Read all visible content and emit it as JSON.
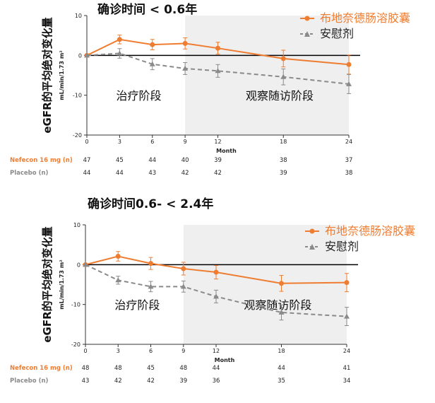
{
  "chart_data": [
    {
      "type": "line",
      "title": "确诊时间 < 0.6年",
      "ylabel": "eGFR的平均绝对变化量",
      "ylabel_unit": "mL/min/1.73 m²",
      "xlabel": "Month",
      "x": [
        0,
        3,
        6,
        9,
        12,
        18,
        24
      ],
      "xlim": [
        0,
        24
      ],
      "ylim": [
        -20,
        10
      ],
      "yticks": [
        10,
        0,
        -10,
        -20
      ],
      "shaded_from": 9,
      "phase_labels": [
        "治疗阶段",
        "观察随访阶段"
      ],
      "legend_position": "top-right",
      "series": [
        {
          "name": "布地奈德肠溶胶囊",
          "color": "#ef7d31",
          "style": "solid",
          "marker": "circle",
          "values": [
            0,
            4.0,
            2.7,
            3.0,
            1.8,
            -0.8,
            -2.3
          ],
          "errors": [
            0,
            1.1,
            1.3,
            1.4,
            1.5,
            2.1,
            2.4
          ]
        },
        {
          "name": "安慰剂",
          "color": "#8a8a8a",
          "style": "dashed",
          "marker": "triangle",
          "values": [
            0,
            0.5,
            -2.2,
            -3.3,
            -3.9,
            -5.4,
            -7.2
          ],
          "errors": [
            0,
            1.2,
            1.4,
            1.5,
            1.6,
            2.0,
            2.4
          ]
        }
      ],
      "at_risk": {
        "x": [
          0,
          3,
          6,
          9,
          12,
          18,
          24
        ],
        "rows": [
          {
            "label": "Nefecon 16 mg (n)",
            "values": [
              "47",
              "45",
              "44",
              "40",
              "39",
              "38",
              "37"
            ]
          },
          {
            "label": "Placebo (n)",
            "values": [
              "44",
              "44",
              "43",
              "42",
              "42",
              "39",
              "38"
            ]
          }
        ]
      }
    },
    {
      "type": "line",
      "title": "确诊时间0.6- < 2.4年",
      "ylabel": "eGFR的平均绝对变化量",
      "ylabel_unit": "mL/min/1.73 m²",
      "xlabel": "Month",
      "x": [
        0,
        3,
        6,
        9,
        12,
        18,
        24
      ],
      "xlim": [
        0,
        24
      ],
      "ylim": [
        -20,
        10
      ],
      "yticks": [
        10,
        0,
        -10,
        -20
      ],
      "shaded_from": 9,
      "phase_labels": [
        "治疗阶段",
        "观察随访阶段"
      ],
      "legend_position": "top-right",
      "series": [
        {
          "name": "布地奈德肠溶胶囊",
          "color": "#ef7d31",
          "style": "solid",
          "marker": "circle",
          "values": [
            0,
            2.1,
            0.3,
            -1.0,
            -1.9,
            -4.7,
            -4.5
          ],
          "errors": [
            0,
            1.2,
            1.5,
            1.6,
            1.7,
            2.0,
            2.3
          ]
        },
        {
          "name": "安慰剂",
          "color": "#8a8a8a",
          "style": "dashed",
          "marker": "triangle",
          "values": [
            0,
            -3.9,
            -5.5,
            -5.5,
            -8.0,
            -12.0,
            -13.0
          ],
          "errors": [
            0,
            1.0,
            1.3,
            1.4,
            1.6,
            1.9,
            2.3
          ]
        }
      ],
      "at_risk": {
        "x": [
          0,
          3,
          6,
          9,
          12,
          18,
          24
        ],
        "rows": [
          {
            "label": "Nefecon 16 mg (n)",
            "values": [
              "48",
              "48",
              "45",
              "48",
              "44",
              "44",
              "41"
            ]
          },
          {
            "label": "Placebo (n)",
            "values": [
              "43",
              "42",
              "42",
              "39",
              "36",
              "35",
              "34"
            ]
          }
        ]
      }
    }
  ]
}
